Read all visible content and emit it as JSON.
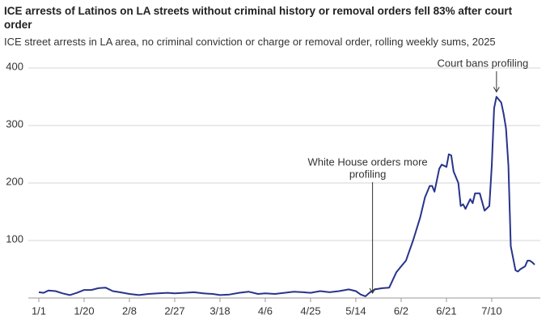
{
  "chart_data": {
    "type": "line",
    "title": "ICE arrests of Latinos on LA streets without criminal history or removal orders fell 83% after court order",
    "subtitle": "ICE street arrests in LA area, no criminal conviction or charge or removal order, rolling weekly sums, 2025",
    "x": [
      "1/1",
      "1/3",
      "1/5",
      "1/8",
      "1/11",
      "1/14",
      "1/17",
      "1/20",
      "1/23",
      "1/26",
      "1/29",
      "2/1",
      "2/4",
      "2/8",
      "2/12",
      "2/16",
      "2/20",
      "2/24",
      "2/27",
      "3/3",
      "3/7",
      "3/11",
      "3/15",
      "3/18",
      "3/22",
      "3/26",
      "3/30",
      "4/3",
      "4/6",
      "4/10",
      "4/14",
      "4/18",
      "4/22",
      "4/25",
      "4/29",
      "5/3",
      "5/7",
      "5/11",
      "5/14",
      "5/16",
      "5/18",
      "5/20",
      "5/22",
      "5/25",
      "5/28",
      "5/31",
      "6/2",
      "6/4",
      "6/7",
      "6/10",
      "6/12",
      "6/14",
      "6/15",
      "6/16",
      "6/18",
      "6/19",
      "6/21",
      "6/22",
      "6/23",
      "6/24",
      "6/26",
      "6/27",
      "6/28",
      "6/29",
      "7/1",
      "7/2",
      "7/3",
      "7/5",
      "7/7",
      "7/9",
      "7/10",
      "7/11",
      "7/12",
      "7/14",
      "7/15",
      "7/16",
      "7/17",
      "7/18",
      "7/20",
      "7/21",
      "7/22",
      "7/24",
      "7/25",
      "7/26",
      "7/27",
      "7/28"
    ],
    "series": [
      {
        "name": "ICE street arrests",
        "color": "#27348b",
        "values": [
          10,
          9,
          13,
          12,
          8,
          5,
          9,
          14,
          14,
          17,
          18,
          12,
          10,
          7,
          5,
          7,
          8,
          9,
          8,
          9,
          10,
          8,
          7,
          5,
          6,
          9,
          11,
          7,
          8,
          7,
          9,
          11,
          10,
          9,
          12,
          10,
          12,
          15,
          12,
          6,
          3,
          10,
          15,
          17,
          18,
          45,
          55,
          65,
          100,
          140,
          175,
          195,
          195,
          185,
          225,
          232,
          228,
          250,
          248,
          220,
          200,
          160,
          163,
          155,
          172,
          165,
          182,
          182,
          152,
          160,
          230,
          330,
          350,
          340,
          320,
          295,
          230,
          90,
          48,
          46,
          50,
          55,
          65,
          65,
          62,
          58
        ]
      }
    ],
    "xlim": [
      "1/1",
      "7/28"
    ],
    "xticks": [
      "1/1",
      "1/20",
      "2/8",
      "2/27",
      "3/18",
      "4/6",
      "4/25",
      "5/14",
      "6/2",
      "6/21",
      "7/10"
    ],
    "ylim": [
      0,
      400
    ],
    "yticks": [
      100,
      200,
      300,
      400
    ],
    "grid": true,
    "annotations": [
      {
        "x": "5/21",
        "lines": [
          "White House orders more",
          "profiling"
        ]
      },
      {
        "x": "7/12",
        "lines": [
          "Court bans profiling"
        ]
      }
    ]
  }
}
